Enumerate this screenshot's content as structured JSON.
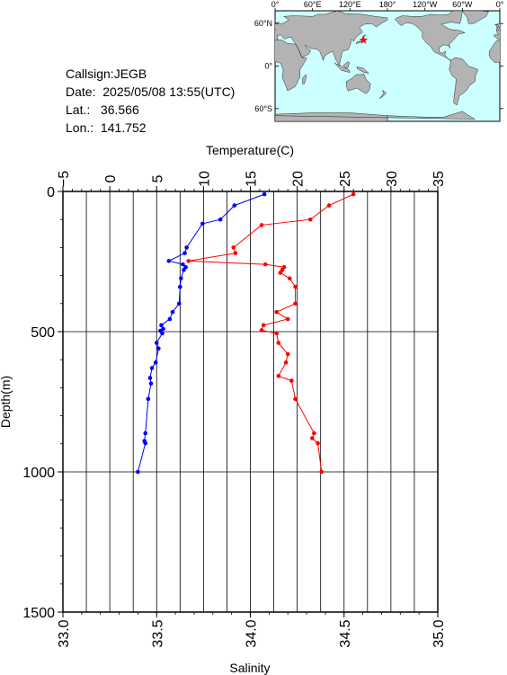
{
  "station": {
    "callsign_label": "Callsign:",
    "callsign": "JEGB",
    "date_label": "Date:",
    "date": "2025/05/08 13:55(UTC)",
    "lat_label": "Lat.:",
    "lat": "36.566",
    "lon_label": "Lon.:",
    "lon": "141.752"
  },
  "map": {
    "lon_labels": [
      "0°",
      "60°E",
      "120°E",
      "180°",
      "120°W",
      "60°W",
      "0°"
    ],
    "lat_labels": [
      "60°N",
      "0°",
      "60°S"
    ],
    "ocean_color": "#ccffff",
    "land_color": "#b3b3b3",
    "marker_color": "#ff0000",
    "marker": {
      "lat": 36.566,
      "lon": 141.752
    }
  },
  "chart_data": {
    "type": "line",
    "ylabel": "Depth(m)",
    "ylim": [
      1500,
      0
    ],
    "yticks": [
      "0",
      "500",
      "1000",
      "1500"
    ],
    "x_top": {
      "label": "Temperature(C)",
      "lim": [
        -5,
        35
      ],
      "ticks": [
        "−5",
        "0",
        "5",
        "10",
        "15",
        "20",
        "25",
        "30",
        "35"
      ]
    },
    "x_bottom": {
      "label": "Salinity",
      "lim": [
        33.0,
        35.0
      ],
      "ticks": [
        "33.0",
        "33.5",
        "34.0",
        "34.5",
        "35.0"
      ]
    },
    "grid": true,
    "series": [
      {
        "axis": "top",
        "color": "#0000ff",
        "points": [
          {
            "x": 16.5,
            "y": 10
          },
          {
            "x": 13.3,
            "y": 50
          },
          {
            "x": 11.8,
            "y": 100
          },
          {
            "x": 9.9,
            "y": 115
          },
          {
            "x": 8.2,
            "y": 200
          },
          {
            "x": 8.0,
            "y": 220
          },
          {
            "x": 6.3,
            "y": 248
          },
          {
            "x": 7.8,
            "y": 260
          },
          {
            "x": 8.1,
            "y": 270
          },
          {
            "x": 7.9,
            "y": 280
          },
          {
            "x": 7.6,
            "y": 310
          },
          {
            "x": 7.5,
            "y": 340
          },
          {
            "x": 7.4,
            "y": 400
          },
          {
            "x": 6.7,
            "y": 430
          },
          {
            "x": 6.4,
            "y": 455
          },
          {
            "x": 5.5,
            "y": 477
          },
          {
            "x": 5.7,
            "y": 490
          },
          {
            "x": 5.4,
            "y": 497
          },
          {
            "x": 5.6,
            "y": 506
          },
          {
            "x": 5.0,
            "y": 540
          },
          {
            "x": 5.2,
            "y": 560
          },
          {
            "x": 4.9,
            "y": 610
          },
          {
            "x": 4.5,
            "y": 630
          },
          {
            "x": 4.3,
            "y": 665
          },
          {
            "x": 4.4,
            "y": 685
          },
          {
            "x": 4.1,
            "y": 740
          },
          {
            "x": 3.8,
            "y": 862
          },
          {
            "x": 3.7,
            "y": 890
          },
          {
            "x": 3.8,
            "y": 898
          },
          {
            "x": 3.0,
            "y": 1000
          }
        ]
      },
      {
        "axis": "bottom",
        "color": "#ff0000",
        "points": [
          {
            "x": 34.55,
            "y": 10
          },
          {
            "x": 34.42,
            "y": 50
          },
          {
            "x": 34.32,
            "y": 100
          },
          {
            "x": 34.06,
            "y": 120
          },
          {
            "x": 33.91,
            "y": 200
          },
          {
            "x": 33.92,
            "y": 220
          },
          {
            "x": 33.67,
            "y": 248
          },
          {
            "x": 34.08,
            "y": 260
          },
          {
            "x": 34.18,
            "y": 270
          },
          {
            "x": 34.17,
            "y": 280
          },
          {
            "x": 34.16,
            "y": 290
          },
          {
            "x": 34.21,
            "y": 310
          },
          {
            "x": 34.24,
            "y": 340
          },
          {
            "x": 34.24,
            "y": 400
          },
          {
            "x": 34.14,
            "y": 430
          },
          {
            "x": 34.2,
            "y": 455
          },
          {
            "x": 34.07,
            "y": 477
          },
          {
            "x": 34.06,
            "y": 495
          },
          {
            "x": 34.14,
            "y": 506
          },
          {
            "x": 34.15,
            "y": 540
          },
          {
            "x": 34.2,
            "y": 580
          },
          {
            "x": 34.19,
            "y": 610
          },
          {
            "x": 34.15,
            "y": 658
          },
          {
            "x": 34.22,
            "y": 675
          },
          {
            "x": 34.24,
            "y": 740
          },
          {
            "x": 34.34,
            "y": 862
          },
          {
            "x": 34.33,
            "y": 880
          },
          {
            "x": 34.36,
            "y": 898
          },
          {
            "x": 34.38,
            "y": 1000
          }
        ]
      }
    ]
  }
}
